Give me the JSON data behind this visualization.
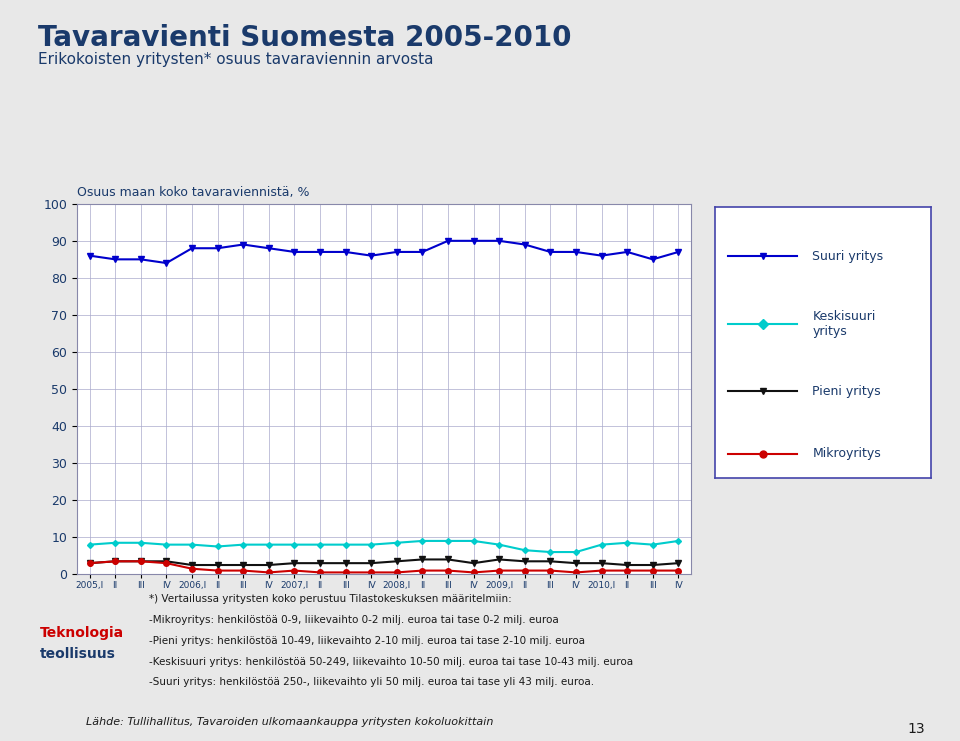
{
  "title": "Tavaravienti Suomesta 2005-2010",
  "subtitle": "Erikokoisten yritysten* osuus tavaraviennin arvosta",
  "ylabel": "Osuus maan koko tavaraviennistä, %",
  "ylim": [
    0,
    100
  ],
  "yticks": [
    0,
    10,
    20,
    30,
    40,
    50,
    60,
    70,
    80,
    90,
    100
  ],
  "xtick_labels": [
    "2005,I",
    "II",
    "III",
    "IV",
    "2006,I",
    "II",
    "III",
    "IV",
    "2007,I",
    "II",
    "III",
    "IV",
    "2008,I",
    "II",
    "III",
    "IV",
    "2009,I",
    "II",
    "III",
    "IV",
    "2010,I",
    "II",
    "III",
    "IV"
  ],
  "footnote1": "*) Vertailussa yritysten koko perustuu Tilastokeskuksen määritelmiin:",
  "footnote2": "-Mikroyritys: henkilöstöä 0-9, liikevaihto 0-2 milj. euroa tai tase 0-2 milj. euroa",
  "footnote3": "-Pieni yritys: henkilöstöä 10-49, liikevaihto 2-10 milj. euroa tai tase 2-10 milj. euroa",
  "footnote4": "-Keskisuuri yritys: henkilöstöä 50-249, liikevaihto 10-50 milj. euroa tai tase 10-43 milj. euroa",
  "footnote5": "-Suuri yritys: henkilöstöä 250-, liikevaihto yli 50 milj. euroa tai tase yli 43 milj. euroa.",
  "source": "Lähde: Tullihallitus, Tavaroiden ulkomaankauppa yritysten kokoluokittain",
  "page_num": "13",
  "suuri_yritys": [
    86,
    85,
    85,
    84,
    88,
    88,
    89,
    88,
    87,
    87,
    87,
    86,
    87,
    87,
    90,
    90,
    90,
    89,
    87,
    87,
    86,
    87,
    85,
    87
  ],
  "keskisuuri_yritys": [
    8,
    8.5,
    8.5,
    8,
    8,
    7.5,
    8,
    8,
    8,
    8,
    8,
    8,
    8.5,
    9,
    9,
    9,
    8,
    6.5,
    6,
    6,
    8,
    8.5,
    8,
    9
  ],
  "pieni_yritys": [
    3,
    3.5,
    3.5,
    3.5,
    2.5,
    2.5,
    2.5,
    2.5,
    3,
    3,
    3,
    3,
    3.5,
    4,
    4,
    3,
    4,
    3.5,
    3.5,
    3,
    3,
    2.5,
    2.5,
    3
  ],
  "mikroyritys": [
    3,
    3.5,
    3.5,
    3,
    1.5,
    1,
    1,
    0.5,
    1,
    0.5,
    0.5,
    0.5,
    0.5,
    1,
    1,
    0.5,
    1,
    1,
    1,
    0.5,
    1,
    1,
    1,
    1
  ],
  "suuri_color": "#0000CC",
  "keskisuuri_color": "#00CCCC",
  "pieni_color": "#111111",
  "mikro_color": "#CC0000",
  "background_color": "#e8e8e8",
  "plot_bg_color": "#ffffff",
  "grid_color": "#aaaacc",
  "title_color": "#1a3a6b",
  "subtitle_color": "#1a3a6b",
  "label_color": "#1a3a6b"
}
